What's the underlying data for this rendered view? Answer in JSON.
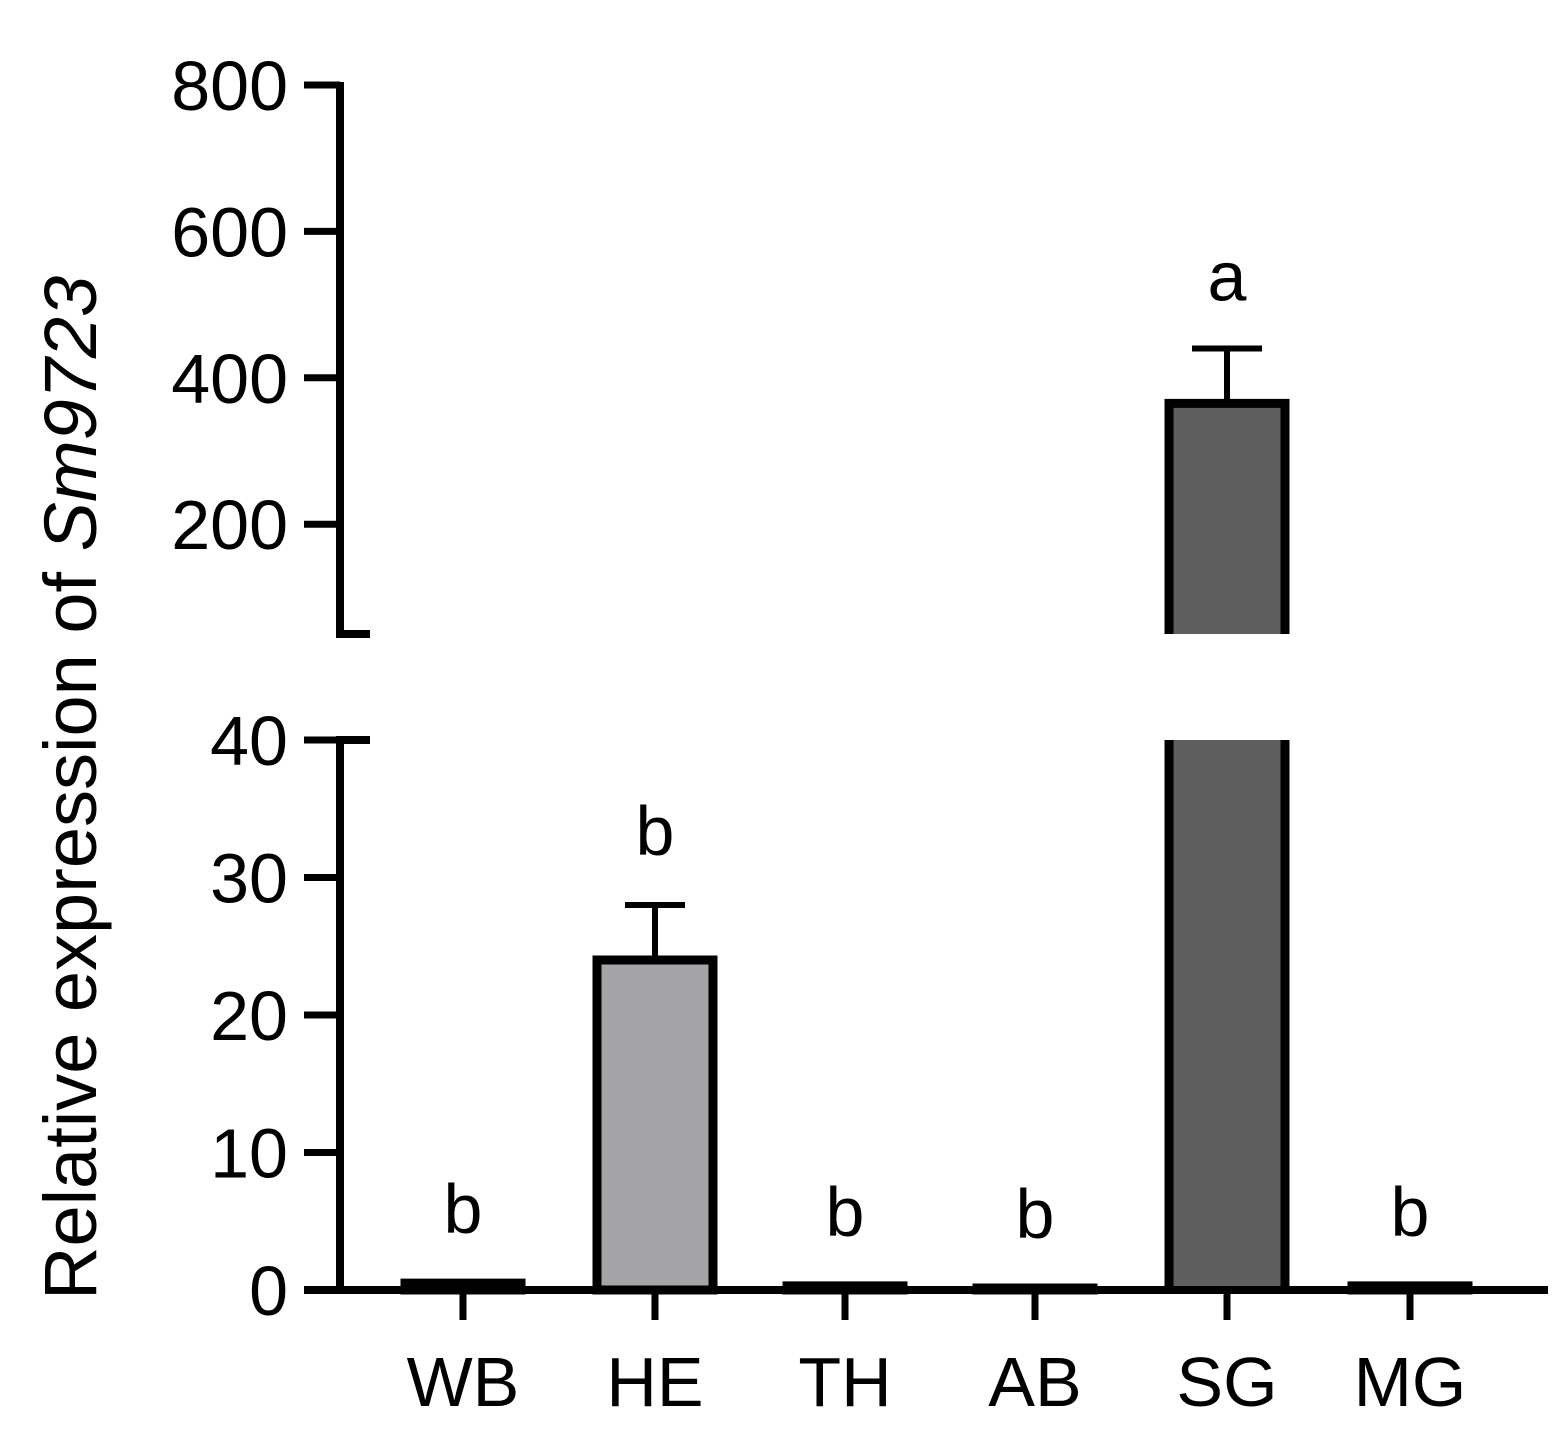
{
  "chart_data": {
    "type": "bar",
    "title": "",
    "xlabel": "",
    "ylabel_prefix": "Relative expression of ",
    "ylabel_gene": "Sm9723",
    "categories": [
      "WB",
      "HE",
      "TH",
      "AB",
      "SG",
      "MG"
    ],
    "values": [
      0.5,
      24,
      0.3,
      0.1,
      365,
      0.3
    ],
    "errors": [
      0,
      4,
      0,
      0,
      75,
      0
    ],
    "significance": [
      "b",
      "b",
      "b",
      "b",
      "a",
      "b"
    ],
    "bar_colors": [
      "#ffffff",
      "#a4a3a8",
      "#ffffff",
      "#ffffff",
      "#5e5e5e",
      "#ffffff"
    ],
    "axis_break": true,
    "lower_ylim": [
      0,
      40
    ],
    "lower_yticks": [
      "0",
      "10",
      "20",
      "30",
      "40"
    ],
    "upper_ylim": [
      50,
      800
    ],
    "upper_yticks": [
      "200",
      "400",
      "600",
      "800"
    ],
    "grid": false
  }
}
